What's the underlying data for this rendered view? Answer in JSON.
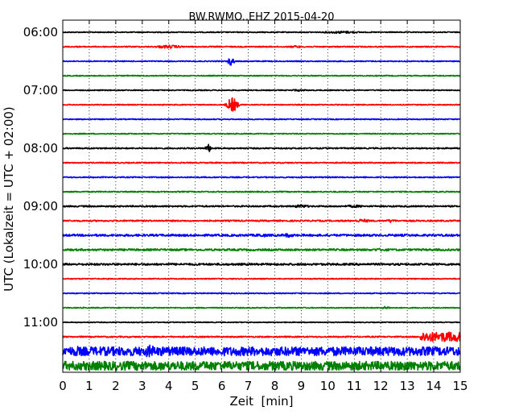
{
  "chart_data": {
    "type": "line",
    "title": "BW.RWMO..EHZ 2015-04-20",
    "xlabel": "Zeit  [min]",
    "ylabel": "UTC (Lokalzeit = UTC + 02:00)",
    "xlim": [
      0,
      15
    ],
    "x_ticks": [
      "0",
      "1",
      "2",
      "3",
      "4",
      "5",
      "6",
      "7",
      "8",
      "9",
      "10",
      "11",
      "12",
      "13",
      "14",
      "15"
    ],
    "y_ticks": [
      "06:00",
      "07:00",
      "08:00",
      "09:00",
      "10:00",
      "11:00"
    ],
    "grid": "vertical-dotted",
    "trace_interval_min": 15,
    "color_cycle": [
      "#000000",
      "#ff0000",
      "#0000ff",
      "#008000"
    ],
    "traces": [
      {
        "start": "06:00",
        "color": "#000000",
        "noise": 0.6,
        "events": [
          {
            "t": 10.5,
            "amp": 1.5,
            "dur": 0.8
          }
        ]
      },
      {
        "start": "06:15",
        "color": "#ff0000",
        "noise": 0.7,
        "events": [
          {
            "t": 4.0,
            "amp": 2.0,
            "dur": 0.6
          },
          {
            "t": 8.8,
            "amp": 1.5,
            "dur": 0.3
          }
        ]
      },
      {
        "start": "06:30",
        "color": "#0000ff",
        "noise": 0.6,
        "events": [
          {
            "t": 6.35,
            "amp": 5.5,
            "dur": 0.12
          }
        ]
      },
      {
        "start": "06:45",
        "color": "#008000",
        "noise": 0.6,
        "events": []
      },
      {
        "start": "07:00",
        "color": "#000000",
        "noise": 0.6,
        "events": [
          {
            "t": 8.9,
            "amp": 1.2,
            "dur": 0.4
          }
        ]
      },
      {
        "start": "07:15",
        "color": "#ff0000",
        "noise": 0.6,
        "events": [
          {
            "t": 6.4,
            "amp": 9.0,
            "dur": 0.2
          }
        ]
      },
      {
        "start": "07:30",
        "color": "#0000ff",
        "noise": 0.6,
        "events": []
      },
      {
        "start": "07:45",
        "color": "#008000",
        "noise": 0.6,
        "events": []
      },
      {
        "start": "08:00",
        "color": "#000000",
        "noise": 0.8,
        "events": [
          {
            "t": 5.5,
            "amp": 5.0,
            "dur": 0.12
          }
        ]
      },
      {
        "start": "08:15",
        "color": "#ff0000",
        "noise": 0.7,
        "events": []
      },
      {
        "start": "08:30",
        "color": "#0000ff",
        "noise": 0.7,
        "events": []
      },
      {
        "start": "08:45",
        "color": "#008000",
        "noise": 0.7,
        "events": []
      },
      {
        "start": "09:00",
        "color": "#000000",
        "noise": 0.9,
        "events": [
          {
            "t": 9.0,
            "amp": 2.0,
            "dur": 0.4
          },
          {
            "t": 11.0,
            "amp": 1.6,
            "dur": 0.5
          }
        ]
      },
      {
        "start": "09:15",
        "color": "#ff0000",
        "noise": 0.9,
        "events": [
          {
            "t": 11.3,
            "amp": 2.0,
            "dur": 0.4
          },
          {
            "t": 12.4,
            "amp": 2.2,
            "dur": 0.2
          }
        ]
      },
      {
        "start": "09:30",
        "color": "#0000ff",
        "noise": 1.3,
        "events": [
          {
            "t": 7.5,
            "amp": 2.2,
            "dur": 0.3
          },
          {
            "t": 8.5,
            "amp": 2.5,
            "dur": 0.3
          }
        ]
      },
      {
        "start": "09:45",
        "color": "#008000",
        "noise": 1.2,
        "events": [
          {
            "t": 12.0,
            "amp": 1.8,
            "dur": 0.5
          }
        ]
      },
      {
        "start": "10:00",
        "color": "#000000",
        "noise": 1.2,
        "events": []
      },
      {
        "start": "10:15",
        "color": "#ff0000",
        "noise": 0.6,
        "events": []
      },
      {
        "start": "10:30",
        "color": "#0000ff",
        "noise": 0.6,
        "events": []
      },
      {
        "start": "10:45",
        "color": "#008000",
        "noise": 0.6,
        "events": [
          {
            "t": 12.2,
            "amp": 1.8,
            "dur": 0.2
          }
        ]
      },
      {
        "start": "11:00",
        "color": "#000000",
        "noise": 0.5,
        "events": []
      },
      {
        "start": "11:15",
        "color": "#ff0000",
        "noise": 0.8,
        "events": [
          {
            "t": 14.3,
            "amp": 6.0,
            "dur": 2.0,
            "sustained_from": 13.5
          }
        ]
      },
      {
        "start": "11:30",
        "color": "#0000ff",
        "noise": 5.5,
        "events": [
          {
            "t": 3.3,
            "amp": 8.0,
            "dur": 0.3
          },
          {
            "t": 0.5,
            "amp": 7.0,
            "dur": 0.2
          }
        ]
      },
      {
        "start": "11:45",
        "color": "#008000",
        "noise": 5.5,
        "events": [
          {
            "t": 12.9,
            "amp": 8.0,
            "dur": 0.2
          }
        ]
      }
    ]
  }
}
